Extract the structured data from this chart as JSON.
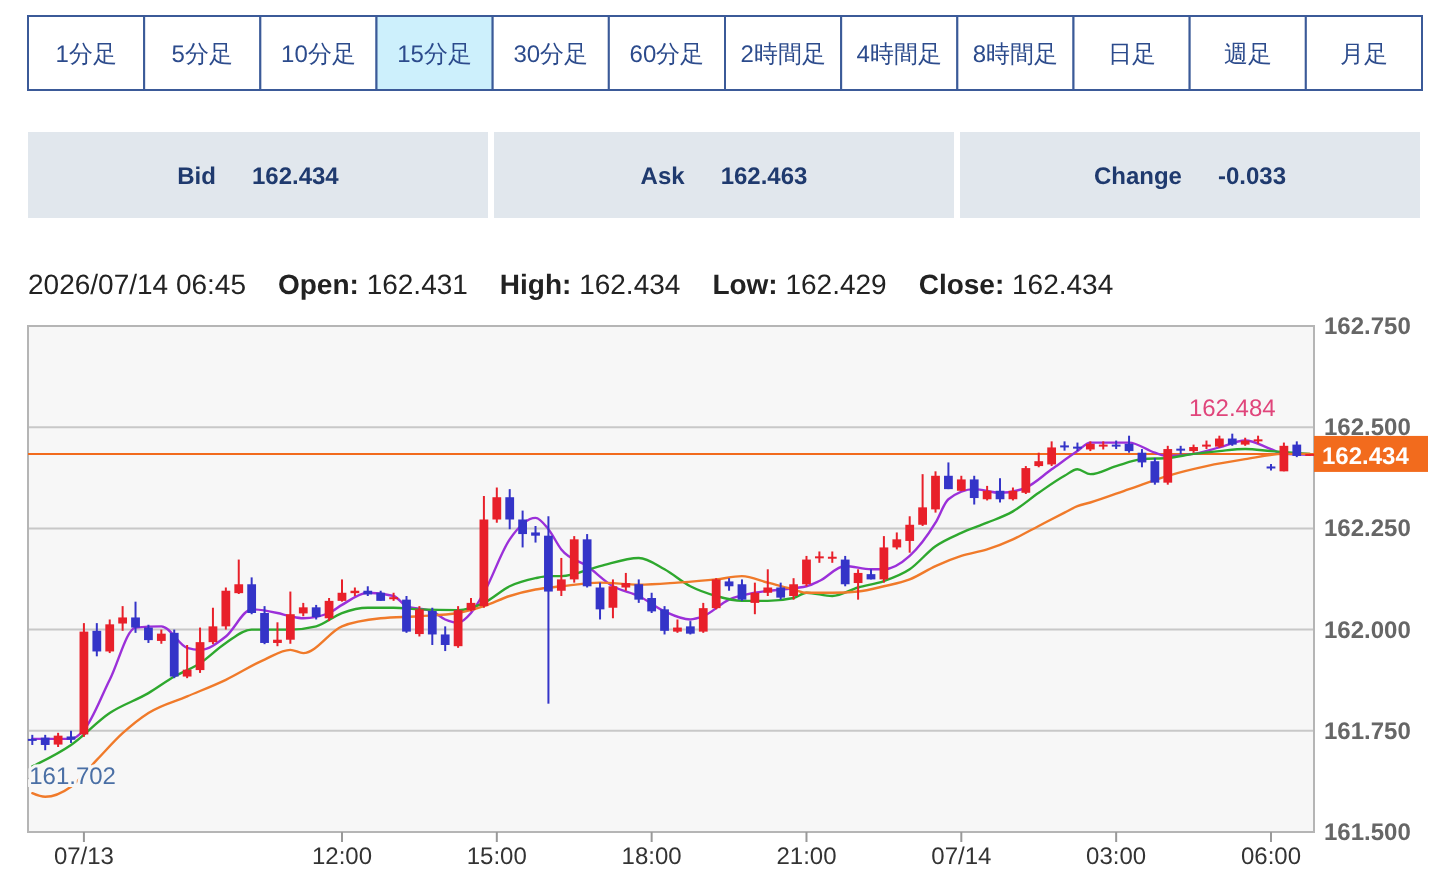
{
  "chart_data": [
    {
      "type": "other",
      "categories": [
        "1分足",
        "5分足",
        "10分足",
        "15分足",
        "30分足",
        "60分足",
        "2時間足",
        "4時間足",
        "8時間足",
        "日足",
        "週足",
        "月足"
      ],
      "colors": [
        "#ffffff",
        "#ffffff",
        "#ffffff",
        "#cdf0fc",
        "#ffffff",
        "#ffffff",
        "#ffffff",
        "#ffffff",
        "#ffffff",
        "#ffffff",
        "#ffffff",
        "#ffffff"
      ],
      "annotations": [
        "Bid",
        "162.434",
        "Ask",
        "162.463",
        "Change",
        "-0.033"
      ]
    },
    {
      "type": "candlestick",
      "title": "2026/07/14 06:45",
      "annotations": [
        "Open: 162.431",
        "High: 162.434",
        "Low: 162.429",
        "Close: 162.434",
        {
          "text": "162.484",
          "x": "2026-07-14T05:15",
          "y": 162.484
        },
        {
          "text": "161.702",
          "x": "2026-07-13T06:15",
          "y": 161.702
        }
      ],
      "x": [
        "2026-07-13T06:00",
        "2026-07-13T06:15",
        "2026-07-13T06:30",
        "2026-07-13T06:45",
        "2026-07-13T07:00",
        "2026-07-13T07:15",
        "2026-07-13T07:30",
        "2026-07-13T07:45",
        "2026-07-13T08:00",
        "2026-07-13T08:15",
        "2026-07-13T08:30",
        "2026-07-13T08:45",
        "2026-07-13T09:00",
        "2026-07-13T09:15",
        "2026-07-13T09:30",
        "2026-07-13T09:45",
        "2026-07-13T10:00",
        "2026-07-13T10:15",
        "2026-07-13T10:30",
        "2026-07-13T10:45",
        "2026-07-13T11:00",
        "2026-07-13T11:15",
        "2026-07-13T11:30",
        "2026-07-13T11:45",
        "2026-07-13T12:00",
        "2026-07-13T12:15",
        "2026-07-13T12:30",
        "2026-07-13T12:45",
        "2026-07-13T13:00",
        "2026-07-13T13:15",
        "2026-07-13T13:30",
        "2026-07-13T13:45",
        "2026-07-13T14:00",
        "2026-07-13T14:15",
        "2026-07-13T14:30",
        "2026-07-13T14:45",
        "2026-07-13T15:00",
        "2026-07-13T15:15",
        "2026-07-13T15:30",
        "2026-07-13T15:45",
        "2026-07-13T16:00",
        "2026-07-13T16:15",
        "2026-07-13T16:30",
        "2026-07-13T16:45",
        "2026-07-13T17:00",
        "2026-07-13T17:15",
        "2026-07-13T17:30",
        "2026-07-13T17:45",
        "2026-07-13T18:00",
        "2026-07-13T18:15",
        "2026-07-13T18:30",
        "2026-07-13T18:45",
        "2026-07-13T19:00",
        "2026-07-13T19:15",
        "2026-07-13T19:30",
        "2026-07-13T19:45",
        "2026-07-13T20:00",
        "2026-07-13T20:15",
        "2026-07-13T20:30",
        "2026-07-13T20:45",
        "2026-07-13T21:00",
        "2026-07-13T21:15",
        "2026-07-13T21:30",
        "2026-07-13T21:45",
        "2026-07-13T22:00",
        "2026-07-13T22:15",
        "2026-07-13T22:30",
        "2026-07-13T22:45",
        "2026-07-13T23:00",
        "2026-07-13T23:15",
        "2026-07-13T23:30",
        "2026-07-13T23:45",
        "2026-07-14T00:00",
        "2026-07-14T00:15",
        "2026-07-14T00:30",
        "2026-07-14T00:45",
        "2026-07-14T01:00",
        "2026-07-14T01:15",
        "2026-07-14T01:30",
        "2026-07-14T01:45",
        "2026-07-14T02:00",
        "2026-07-14T02:15",
        "2026-07-14T02:30",
        "2026-07-14T02:45",
        "2026-07-14T03:00",
        "2026-07-14T03:15",
        "2026-07-14T03:30",
        "2026-07-14T03:45",
        "2026-07-14T04:00",
        "2026-07-14T04:15",
        "2026-07-14T04:30",
        "2026-07-14T04:45",
        "2026-07-14T05:00",
        "2026-07-14T05:15",
        "2026-07-14T05:30",
        "2026-07-14T05:45",
        "2026-07-14T06:00",
        "2026-07-14T06:15",
        "2026-07-14T06:30",
        "2026-07-14T06:45"
      ],
      "ohlc": [
        [
          161.73,
          161.74,
          161.715,
          161.728
        ],
        [
          161.733,
          161.74,
          161.702,
          161.715
        ],
        [
          161.716,
          161.745,
          161.71,
          161.738
        ],
        [
          161.736,
          161.75,
          161.72,
          161.728
        ],
        [
          161.741,
          162.016,
          161.735,
          161.995
        ],
        [
          161.997,
          162.016,
          161.934,
          161.946
        ],
        [
          161.946,
          162.025,
          161.942,
          162.013
        ],
        [
          162.015,
          162.058,
          161.997,
          162.03
        ],
        [
          162.03,
          162.069,
          161.992,
          162.005
        ],
        [
          162.005,
          162.012,
          161.967,
          161.974
        ],
        [
          161.972,
          162.0,
          161.965,
          161.99
        ],
        [
          161.992,
          162.0,
          161.88,
          161.884
        ],
        [
          161.884,
          161.962,
          161.88,
          161.901
        ],
        [
          161.9,
          162.005,
          161.893,
          161.969
        ],
        [
          161.969,
          162.054,
          161.964,
          162.008
        ],
        [
          162.008,
          162.104,
          162.0,
          162.096
        ],
        [
          162.09,
          162.173,
          162.088,
          162.112
        ],
        [
          162.112,
          162.129,
          162.038,
          162.041
        ],
        [
          162.041,
          162.058,
          161.964,
          161.967
        ],
        [
          161.967,
          162.018,
          161.959,
          161.975
        ],
        [
          161.975,
          162.094,
          161.965,
          162.038
        ],
        [
          162.04,
          162.066,
          162.033,
          162.055
        ],
        [
          162.055,
          162.061,
          162.025,
          162.031
        ],
        [
          162.028,
          162.078,
          162.021,
          162.071
        ],
        [
          162.071,
          162.124,
          162.069,
          162.091
        ],
        [
          162.09,
          162.104,
          162.083,
          162.096
        ],
        [
          162.096,
          162.107,
          162.083,
          162.087
        ],
        [
          162.091,
          162.096,
          162.071,
          162.071
        ],
        [
          162.075,
          162.091,
          162.071,
          162.08
        ],
        [
          162.074,
          162.083,
          161.992,
          161.995
        ],
        [
          161.989,
          162.058,
          161.983,
          162.05
        ],
        [
          162.046,
          162.054,
          161.962,
          161.988
        ],
        [
          161.988,
          162.008,
          161.947,
          161.962
        ],
        [
          161.959,
          162.058,
          161.955,
          162.048
        ],
        [
          162.048,
          162.078,
          162.045,
          162.066
        ],
        [
          162.058,
          162.33,
          162.054,
          162.272
        ],
        [
          162.272,
          162.351,
          162.264,
          162.327
        ],
        [
          162.327,
          162.347,
          162.248,
          162.272
        ],
        [
          162.272,
          162.294,
          162.203,
          162.236
        ],
        [
          162.24,
          162.256,
          162.215,
          162.232
        ],
        [
          162.232,
          162.28,
          161.817,
          162.094
        ],
        [
          162.096,
          162.177,
          162.083,
          162.124
        ],
        [
          162.124,
          162.231,
          162.116,
          162.223
        ],
        [
          162.223,
          162.236,
          162.104,
          162.107
        ],
        [
          162.104,
          162.116,
          162.025,
          162.05
        ],
        [
          162.054,
          162.124,
          162.028,
          162.107
        ],
        [
          162.104,
          162.14,
          162.096,
          162.115
        ],
        [
          162.112,
          162.124,
          162.066,
          162.074
        ],
        [
          162.078,
          162.091,
          162.041,
          162.045
        ],
        [
          162.05,
          162.058,
          161.988,
          161.997
        ],
        [
          161.995,
          162.025,
          161.992,
          162.005
        ],
        [
          162.008,
          162.021,
          161.988,
          161.99
        ],
        [
          161.995,
          162.066,
          161.992,
          162.053
        ],
        [
          162.053,
          162.127,
          162.05,
          162.124
        ],
        [
          162.119,
          162.127,
          162.096,
          162.107
        ],
        [
          162.112,
          162.124,
          162.071,
          162.074
        ],
        [
          162.066,
          162.116,
          162.038,
          162.091
        ],
        [
          162.091,
          162.149,
          162.083,
          162.104
        ],
        [
          162.104,
          162.116,
          162.074,
          162.079
        ],
        [
          162.083,
          162.127,
          162.074,
          162.112
        ],
        [
          162.112,
          162.182,
          162.107,
          162.173
        ],
        [
          162.178,
          162.193,
          162.165,
          162.181
        ],
        [
          162.178,
          162.193,
          162.165,
          162.18
        ],
        [
          162.173,
          162.182,
          162.107,
          162.112
        ],
        [
          162.115,
          162.149,
          162.074,
          162.14
        ],
        [
          162.137,
          162.149,
          162.124,
          162.124
        ],
        [
          162.124,
          162.231,
          162.116,
          162.203
        ],
        [
          162.203,
          162.24,
          162.198,
          162.223
        ],
        [
          162.219,
          162.28,
          162.19,
          162.259
        ],
        [
          162.259,
          162.384,
          162.256,
          162.302
        ],
        [
          162.297,
          162.391,
          162.289,
          162.38
        ],
        [
          162.38,
          162.413,
          162.347,
          162.347
        ],
        [
          162.343,
          162.38,
          162.342,
          162.371
        ],
        [
          162.371,
          162.38,
          162.309,
          162.325
        ],
        [
          162.322,
          162.355,
          162.319,
          162.343
        ],
        [
          162.343,
          162.374,
          162.314,
          162.322
        ],
        [
          162.322,
          162.351,
          162.319,
          162.343
        ],
        [
          162.338,
          162.404,
          162.335,
          162.399
        ],
        [
          162.404,
          162.437,
          162.401,
          162.416
        ],
        [
          162.408,
          162.465,
          162.404,
          162.45
        ],
        [
          162.455,
          162.465,
          162.442,
          162.452
        ],
        [
          162.452,
          162.462,
          162.441,
          162.449
        ],
        [
          162.445,
          162.465,
          162.441,
          162.459
        ],
        [
          162.456,
          162.465,
          162.445,
          162.457
        ],
        [
          162.457,
          162.467,
          162.446,
          162.455
        ],
        [
          162.459,
          162.479,
          162.437,
          162.441
        ],
        [
          162.437,
          162.446,
          162.401,
          162.413
        ],
        [
          162.416,
          162.424,
          162.358,
          162.363
        ],
        [
          162.363,
          162.454,
          162.358,
          162.446
        ],
        [
          162.447,
          162.454,
          162.434,
          162.444
        ],
        [
          162.441,
          162.457,
          162.437,
          162.451
        ],
        [
          162.455,
          162.467,
          162.446,
          162.457
        ],
        [
          162.452,
          162.479,
          162.449,
          162.472
        ],
        [
          162.472,
          162.484,
          162.454,
          162.457
        ],
        [
          162.457,
          162.474,
          162.454,
          162.467
        ],
        [
          162.465,
          162.479,
          162.459,
          162.47
        ],
        [
          162.403,
          162.409,
          162.393,
          162.398
        ],
        [
          162.391,
          162.462,
          162.391,
          162.454
        ],
        [
          162.457,
          162.465,
          162.426,
          162.429
        ],
        [
          162.431,
          162.434,
          162.429,
          162.434
        ]
      ],
      "colors": [
        "#3434c8",
        "#3434c8",
        "#e8202a",
        "#3434c8",
        "#e8202a",
        "#3434c8",
        "#e8202a",
        "#e8202a",
        "#3434c8",
        "#3434c8",
        "#e8202a",
        "#3434c8",
        "#e8202a",
        "#e8202a",
        "#e8202a",
        "#e8202a",
        "#e8202a",
        "#3434c8",
        "#3434c8",
        "#e8202a",
        "#e8202a",
        "#e8202a",
        "#3434c8",
        "#e8202a",
        "#e8202a",
        "#e8202a",
        "#3434c8",
        "#3434c8",
        "#e8202a",
        "#3434c8",
        "#e8202a",
        "#3434c8",
        "#3434c8",
        "#e8202a",
        "#e8202a",
        "#e8202a",
        "#e8202a",
        "#3434c8",
        "#3434c8",
        "#3434c8",
        "#3434c8",
        "#e8202a",
        "#e8202a",
        "#3434c8",
        "#3434c8",
        "#e8202a",
        "#e8202a",
        "#3434c8",
        "#3434c8",
        "#3434c8",
        "#e8202a",
        "#3434c8",
        "#e8202a",
        "#e8202a",
        "#3434c8",
        "#3434c8",
        "#e8202a",
        "#e8202a",
        "#3434c8",
        "#e8202a",
        "#e8202a",
        "#e8202a",
        "#e8202a",
        "#3434c8",
        "#e8202a",
        "#3434c8",
        "#e8202a",
        "#e8202a",
        "#e8202a",
        "#e8202a",
        "#e8202a",
        "#3434c8",
        "#e8202a",
        "#3434c8",
        "#e8202a",
        "#3434c8",
        "#e8202a",
        "#e8202a",
        "#e8202a",
        "#e8202a",
        "#3434c8",
        "#3434c8",
        "#e8202a",
        "#e8202a",
        "#3434c8",
        "#3434c8",
        "#3434c8",
        "#3434c8",
        "#e8202a",
        "#3434c8",
        "#e8202a",
        "#e8202a",
        "#e8202a",
        "#3434c8",
        "#e8202a",
        "#e8202a",
        "#3434c8",
        "#e8202a",
        "#3434c8",
        "#e8202a"
      ],
      "series": [
        {
          "type": "line",
          "color": "#9b30d9",
          "x": [
            "2026-07-13T06:00",
            "2026-07-13T06:45",
            "2026-07-13T07:00",
            "2026-07-13T07:30",
            "2026-07-13T08:00",
            "2026-07-13T08:30",
            "2026-07-13T09:00",
            "2026-07-13T09:15",
            "2026-07-13T09:45",
            "2026-07-13T10:15",
            "2026-07-13T10:45",
            "2026-07-13T11:00",
            "2026-07-13T11:15",
            "2026-07-13T11:45",
            "2026-07-13T12:00",
            "2026-07-13T12:30",
            "2026-07-13T13:00",
            "2026-07-13T13:15",
            "2026-07-13T13:45",
            "2026-07-13T14:00",
            "2026-07-13T14:15",
            "2026-07-13T14:30",
            "2026-07-13T14:45",
            "2026-07-13T15:15",
            "2026-07-13T15:45",
            "2026-07-13T16:00",
            "2026-07-13T16:15",
            "2026-07-13T16:45",
            "2026-07-13T17:15",
            "2026-07-13T17:45",
            "2026-07-13T18:15",
            "2026-07-13T18:45",
            "2026-07-13T19:00",
            "2026-07-13T19:30",
            "2026-07-13T20:00",
            "2026-07-13T20:30",
            "2026-07-13T21:00",
            "2026-07-13T21:15",
            "2026-07-13T21:45",
            "2026-07-13T22:15",
            "2026-07-13T22:30",
            "2026-07-13T23:00",
            "2026-07-13T23:30",
            "2026-07-13T23:45",
            "2026-07-14T00:15",
            "2026-07-14T00:45",
            "2026-07-14T01:15",
            "2026-07-14T01:45",
            "2026-07-14T02:15",
            "2026-07-14T02:30",
            "2026-07-14T03:15",
            "2026-07-14T03:45",
            "2026-07-14T04:00",
            "2026-07-14T04:30",
            "2026-07-14T05:00",
            "2026-07-14T05:30",
            "2026-07-14T06:00",
            "2026-07-14T06:15",
            "2026-07-14T06:45"
          ],
          "values": [
            161.73,
            161.73,
            161.752,
            161.876,
            162.005,
            162.008,
            161.955,
            161.95,
            161.983,
            162.05,
            162.041,
            162.033,
            162.028,
            162.041,
            162.061,
            162.091,
            162.083,
            162.058,
            162.045,
            162.025,
            162.017,
            162.041,
            162.091,
            162.223,
            162.276,
            162.248,
            162.198,
            162.157,
            162.107,
            162.083,
            162.045,
            162.025,
            162.033,
            162.074,
            162.091,
            162.099,
            162.107,
            162.12,
            162.157,
            162.149,
            162.149,
            162.182,
            162.264,
            162.322,
            162.347,
            162.338,
            162.351,
            162.396,
            162.441,
            162.462,
            162.462,
            162.437,
            162.429,
            162.434,
            162.45,
            162.467,
            162.446,
            162.434,
            162.432
          ]
        },
        {
          "type": "line",
          "color": "#2ea82e",
          "x": [
            "2026-07-13T06:00",
            "2026-07-13T06:45",
            "2026-07-13T07:30",
            "2026-07-13T08:15",
            "2026-07-13T08:45",
            "2026-07-13T09:15",
            "2026-07-13T09:45",
            "2026-07-13T10:15",
            "2026-07-13T11:00",
            "2026-07-13T11:30",
            "2026-07-13T12:00",
            "2026-07-13T12:30",
            "2026-07-13T13:00",
            "2026-07-13T13:30",
            "2026-07-13T14:15",
            "2026-07-13T14:45",
            "2026-07-13T15:15",
            "2026-07-13T15:45",
            "2026-07-13T16:00",
            "2026-07-13T16:15",
            "2026-07-13T17:00",
            "2026-07-13T17:45",
            "2026-07-13T18:15",
            "2026-07-13T18:45",
            "2026-07-13T19:15",
            "2026-07-13T19:45",
            "2026-07-13T20:15",
            "2026-07-13T20:45",
            "2026-07-13T21:00",
            "2026-07-13T21:30",
            "2026-07-13T22:00",
            "2026-07-13T22:30",
            "2026-07-13T23:00",
            "2026-07-13T23:30",
            "2026-07-14T00:00",
            "2026-07-14T00:30",
            "2026-07-14T01:00",
            "2026-07-14T01:30",
            "2026-07-14T02:00",
            "2026-07-14T02:15",
            "2026-07-14T02:30",
            "2026-07-14T03:00",
            "2026-07-14T03:30",
            "2026-07-14T04:00",
            "2026-07-14T04:30",
            "2026-07-14T05:00",
            "2026-07-14T05:30",
            "2026-07-14T06:00",
            "2026-07-14T06:45"
          ],
          "values": [
            161.662,
            161.715,
            161.794,
            161.843,
            161.884,
            161.917,
            161.967,
            162.0,
            162.0,
            162.008,
            162.041,
            162.054,
            162.054,
            162.05,
            162.048,
            162.066,
            162.107,
            162.127,
            162.132,
            162.132,
            162.157,
            162.177,
            162.149,
            162.107,
            162.083,
            162.071,
            162.071,
            162.078,
            162.091,
            162.083,
            162.104,
            162.12,
            162.149,
            162.206,
            162.239,
            162.264,
            162.292,
            162.338,
            162.38,
            162.396,
            162.384,
            162.404,
            162.421,
            162.424,
            162.434,
            162.441,
            162.446,
            162.441,
            162.434
          ]
        },
        {
          "type": "line",
          "color": "#f07a2a",
          "x": [
            "2026-07-13T06:00",
            "2026-07-13T06:15",
            "2026-07-13T06:45",
            "2026-07-13T07:15",
            "2026-07-13T07:45",
            "2026-07-13T08:15",
            "2026-07-13T09:00",
            "2026-07-13T09:45",
            "2026-07-13T10:30",
            "2026-07-13T11:00",
            "2026-07-13T11:15",
            "2026-07-13T12:00",
            "2026-07-13T12:45",
            "2026-07-13T13:30",
            "2026-07-13T14:15",
            "2026-07-13T14:45",
            "2026-07-13T15:15",
            "2026-07-13T15:45",
            "2026-07-13T16:15",
            "2026-07-13T17:00",
            "2026-07-13T17:45",
            "2026-07-13T18:30",
            "2026-07-13T19:15",
            "2026-07-13T19:45",
            "2026-07-13T20:15",
            "2026-07-13T20:45",
            "2026-07-13T21:00",
            "2026-07-13T21:30",
            "2026-07-13T22:00",
            "2026-07-13T22:30",
            "2026-07-13T23:00",
            "2026-07-13T23:30",
            "2026-07-14T00:00",
            "2026-07-14T00:30",
            "2026-07-14T01:00",
            "2026-07-14T01:30",
            "2026-07-14T02:00",
            "2026-07-14T02:15",
            "2026-07-14T02:30",
            "2026-07-14T03:15",
            "2026-07-14T04:00",
            "2026-07-14T04:45",
            "2026-07-14T05:30",
            "2026-07-14T06:15",
            "2026-07-14T06:45"
          ],
          "values": [
            161.596,
            161.587,
            161.612,
            161.678,
            161.744,
            161.794,
            161.835,
            161.876,
            161.926,
            161.95,
            161.942,
            162.008,
            162.028,
            162.033,
            162.041,
            162.058,
            162.083,
            162.099,
            162.107,
            162.116,
            162.111,
            162.116,
            162.124,
            162.132,
            162.116,
            162.099,
            162.091,
            162.091,
            162.094,
            162.107,
            162.124,
            162.157,
            162.182,
            162.198,
            162.223,
            162.256,
            162.289,
            162.305,
            162.314,
            162.347,
            162.38,
            162.404,
            162.421,
            162.434,
            162.434
          ]
        }
      ],
      "xlim": [
        "2026-07-13T05:55",
        "2026-07-14T06:50"
      ],
      "xticks": [
        {
          "value": "2026-07-13T07:00",
          "label": "07/13"
        },
        {
          "value": "2026-07-13T12:00",
          "label": "12:00"
        },
        {
          "value": "2026-07-13T15:00",
          "label": "15:00"
        },
        {
          "value": "2026-07-13T18:00",
          "label": "18:00"
        },
        {
          "value": "2026-07-13T21:00",
          "label": "21:00"
        },
        {
          "value": "2026-07-14T00:00",
          "label": "07/14"
        },
        {
          "value": "2026-07-14T03:00",
          "label": "03:00"
        },
        {
          "value": "2026-07-14T06:00",
          "label": "06:00"
        }
      ],
      "ylim": [
        161.5,
        162.75
      ],
      "yticks": [
        {
          "value": 161.5,
          "label": "161.500"
        },
        {
          "value": 161.75,
          "label": "161.750"
        },
        {
          "value": 162,
          "label": "162.000"
        },
        {
          "value": 162.25,
          "label": "162.250"
        },
        {
          "value": 162.5,
          "label": "162.500"
        },
        {
          "value": 162.75,
          "label": "162.750"
        }
      ],
      "grid": "y",
      "ref_lines": [
        {
          "axis": "y",
          "value": 162.434,
          "label": "162.434",
          "color": "#f26b1d"
        }
      ]
    }
  ]
}
